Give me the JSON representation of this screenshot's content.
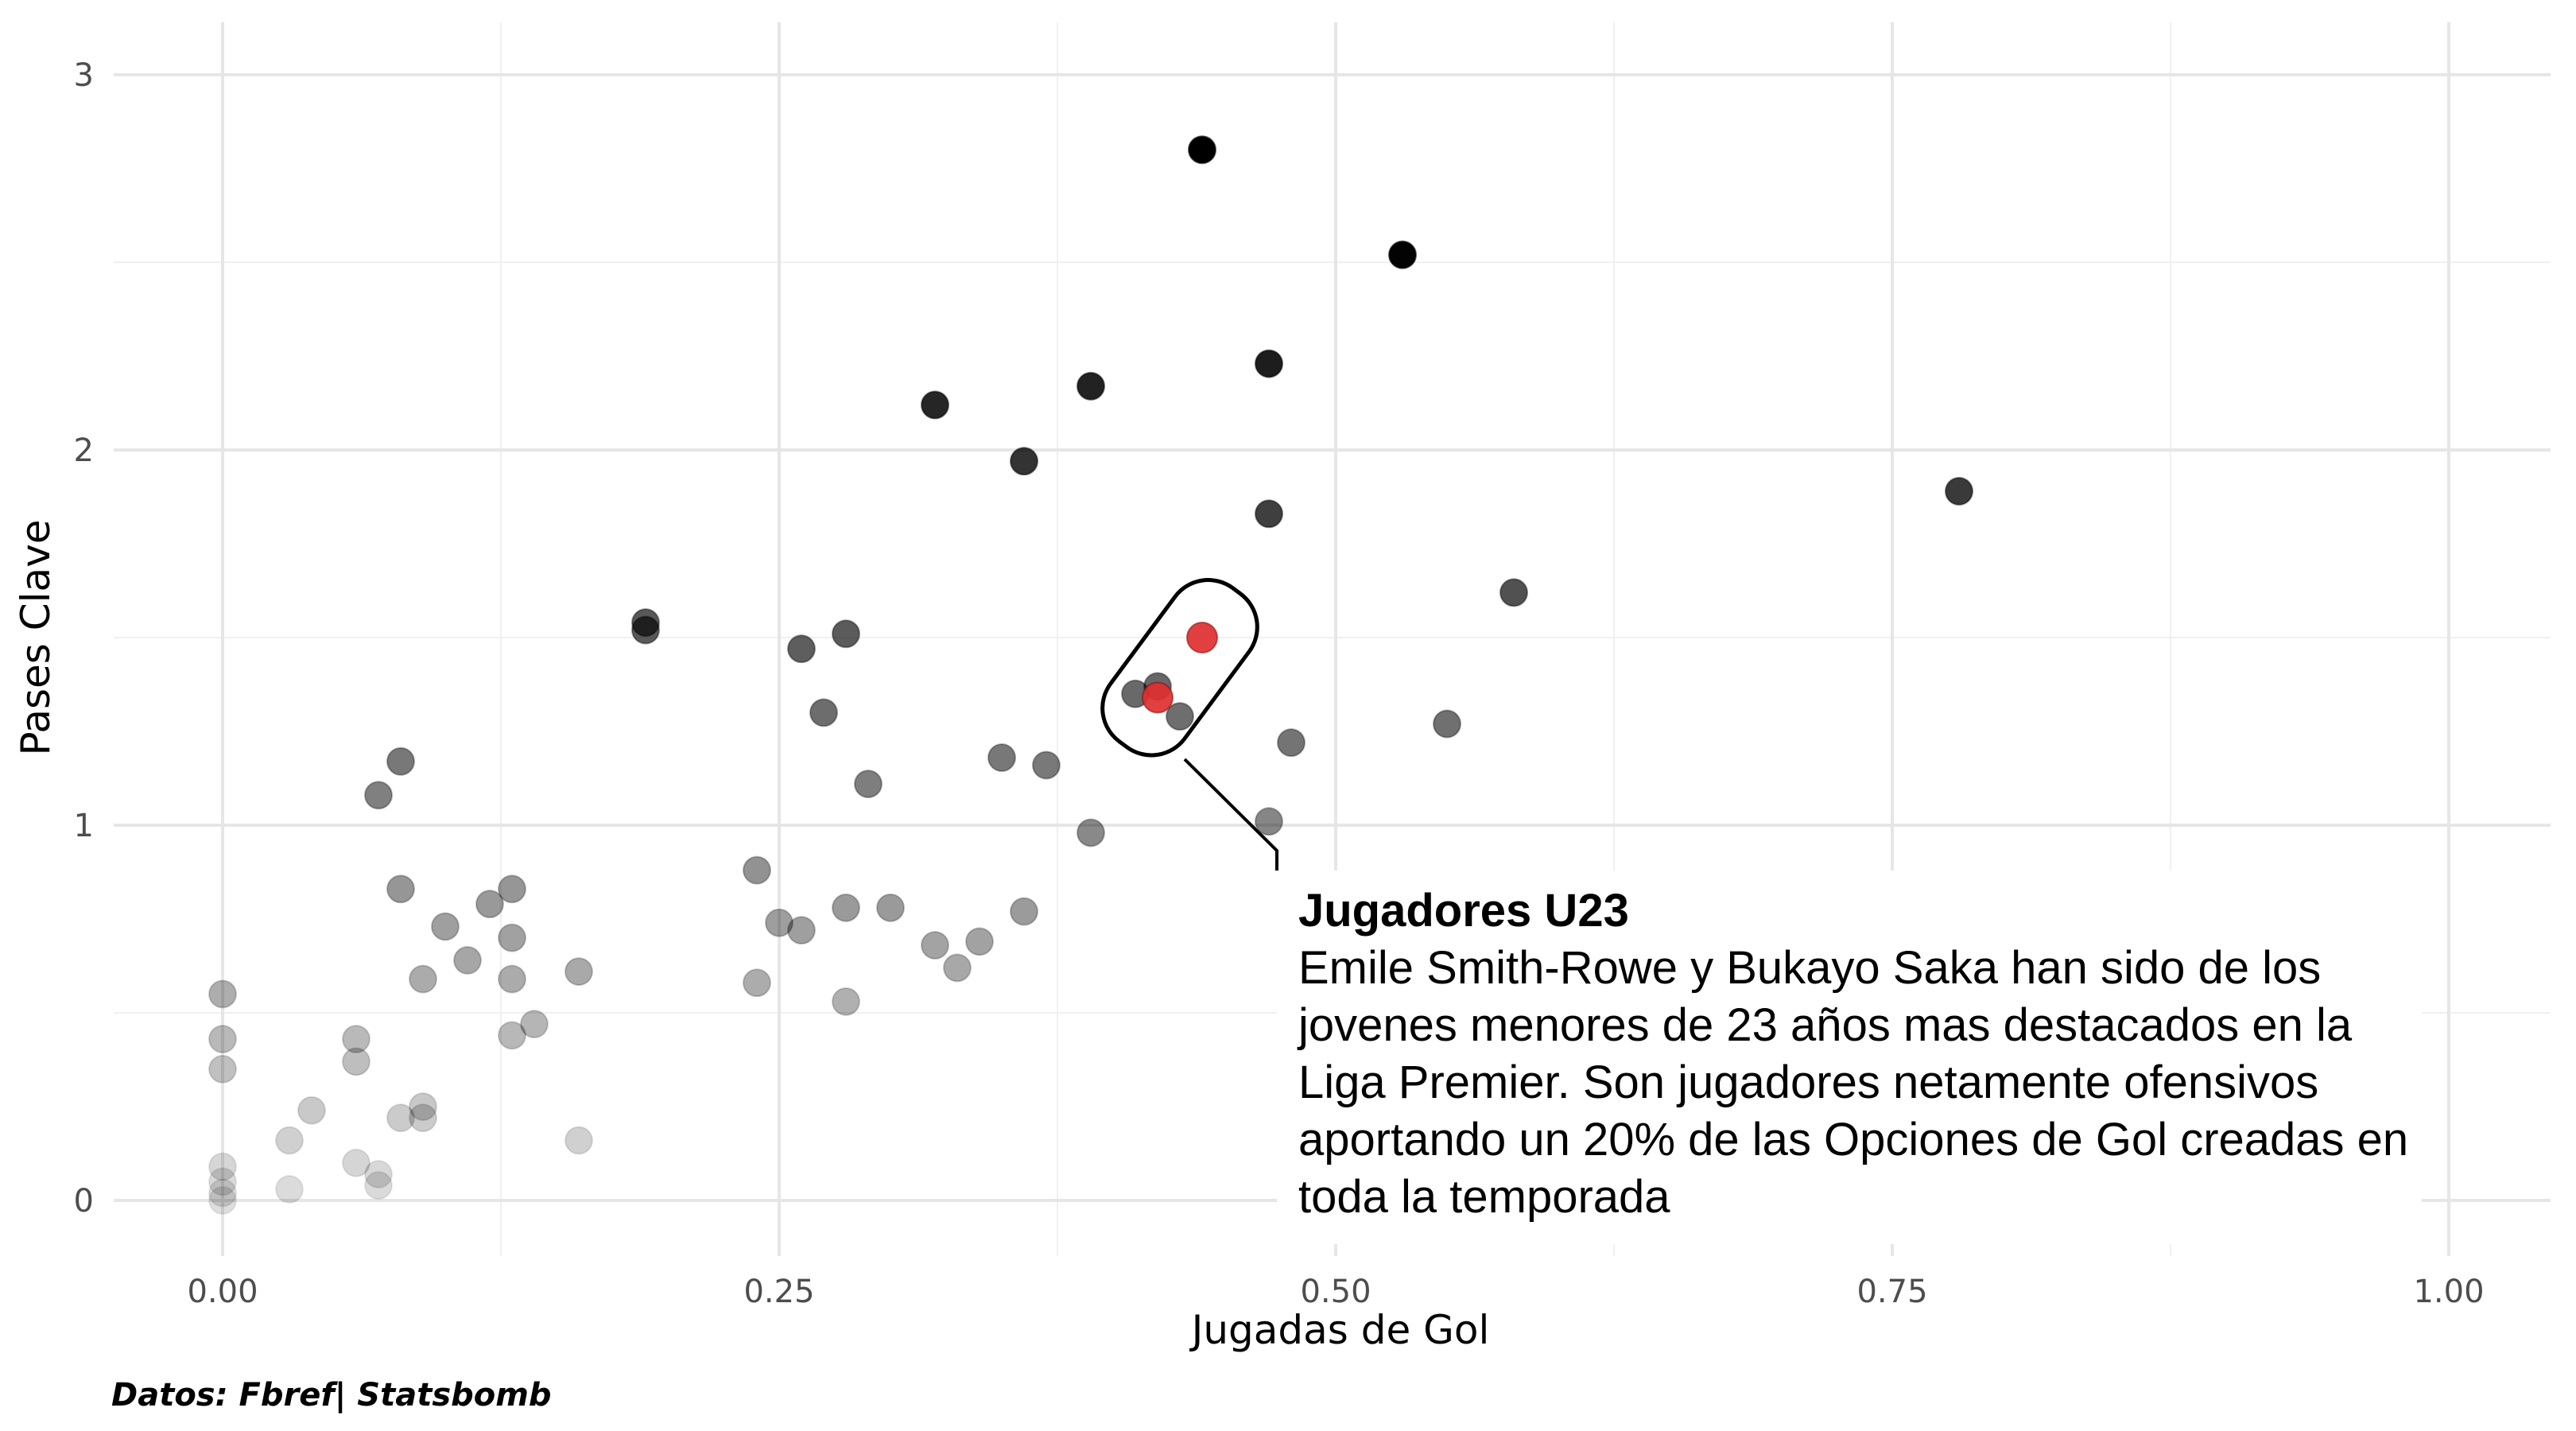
{
  "chart_data": {
    "type": "scatter",
    "xlabel": "Jugadas de Gol",
    "ylabel": "Pases Clave",
    "xlim": [
      -0.05,
      1.05
    ],
    "ylim": [
      -0.15,
      3.1
    ],
    "x_ticks": [
      "0.00",
      "0.25",
      "0.50",
      "0.75",
      "1.00"
    ],
    "x_tick_values": [
      0,
      0.25,
      0.5,
      0.75,
      1.0
    ],
    "y_ticks": [
      "0",
      "1",
      "2",
      "3"
    ],
    "y_tick_values": [
      0,
      1,
      2,
      3
    ],
    "grid": true,
    "point_color": "#000000",
    "highlight_color": "#e03030",
    "points": [
      {
        "x": 0.44,
        "y": 2.8
      },
      {
        "x": 0.53,
        "y": 2.52
      },
      {
        "x": 0.47,
        "y": 2.23
      },
      {
        "x": 0.39,
        "y": 2.17
      },
      {
        "x": 0.32,
        "y": 2.12
      },
      {
        "x": 0.36,
        "y": 1.97
      },
      {
        "x": 0.78,
        "y": 1.89
      },
      {
        "x": 0.47,
        "y": 1.83
      },
      {
        "x": 0.58,
        "y": 1.62
      },
      {
        "x": 0.19,
        "y": 1.54
      },
      {
        "x": 0.19,
        "y": 1.52
      },
      {
        "x": 0.28,
        "y": 1.51
      },
      {
        "x": 0.26,
        "y": 1.47
      },
      {
        "x": 0.42,
        "y": 1.37
      },
      {
        "x": 0.41,
        "y": 1.35
      },
      {
        "x": 0.27,
        "y": 1.3
      },
      {
        "x": 0.43,
        "y": 1.29
      },
      {
        "x": 0.55,
        "y": 1.27
      },
      {
        "x": 0.48,
        "y": 1.22
      },
      {
        "x": 0.35,
        "y": 1.18
      },
      {
        "x": 0.37,
        "y": 1.16
      },
      {
        "x": 0.08,
        "y": 1.17
      },
      {
        "x": 0.29,
        "y": 1.11
      },
      {
        "x": 0.07,
        "y": 1.08
      },
      {
        "x": 0.47,
        "y": 1.01
      },
      {
        "x": 0.39,
        "y": 0.98
      },
      {
        "x": 0.24,
        "y": 0.88
      },
      {
        "x": 0.08,
        "y": 0.83
      },
      {
        "x": 0.13,
        "y": 0.83
      },
      {
        "x": 0.12,
        "y": 0.79
      },
      {
        "x": 0.28,
        "y": 0.78
      },
      {
        "x": 0.3,
        "y": 0.78
      },
      {
        "x": 0.36,
        "y": 0.77
      },
      {
        "x": 0.25,
        "y": 0.74
      },
      {
        "x": 0.1,
        "y": 0.73
      },
      {
        "x": 0.26,
        "y": 0.72
      },
      {
        "x": 0.13,
        "y": 0.7
      },
      {
        "x": 0.32,
        "y": 0.68
      },
      {
        "x": 0.34,
        "y": 0.69
      },
      {
        "x": 0.11,
        "y": 0.64
      },
      {
        "x": 0.33,
        "y": 0.62
      },
      {
        "x": 0.16,
        "y": 0.61
      },
      {
        "x": 0.09,
        "y": 0.59
      },
      {
        "x": 0.13,
        "y": 0.59
      },
      {
        "x": 0.24,
        "y": 0.58
      },
      {
        "x": 0.0,
        "y": 0.55
      },
      {
        "x": 0.28,
        "y": 0.53
      },
      {
        "x": 0.14,
        "y": 0.47
      },
      {
        "x": 0.13,
        "y": 0.44
      },
      {
        "x": 0.0,
        "y": 0.43
      },
      {
        "x": 0.06,
        "y": 0.43
      },
      {
        "x": 0.06,
        "y": 0.37
      },
      {
        "x": 0.0,
        "y": 0.35
      },
      {
        "x": 0.09,
        "y": 0.25
      },
      {
        "x": 0.04,
        "y": 0.24
      },
      {
        "x": 0.08,
        "y": 0.22
      },
      {
        "x": 0.09,
        "y": 0.22
      },
      {
        "x": 0.03,
        "y": 0.16
      },
      {
        "x": 0.16,
        "y": 0.16
      },
      {
        "x": 0.06,
        "y": 0.1
      },
      {
        "x": 0.0,
        "y": 0.09
      },
      {
        "x": 0.07,
        "y": 0.07
      },
      {
        "x": 0.0,
        "y": 0.05
      },
      {
        "x": 0.07,
        "y": 0.04
      },
      {
        "x": 0.03,
        "y": 0.03
      },
      {
        "x": 0.0,
        "y": 0.02
      },
      {
        "x": 0.0,
        "y": 0.0
      }
    ],
    "highlighted": [
      {
        "x": 0.44,
        "y": 1.5
      },
      {
        "x": 0.42,
        "y": 1.34
      }
    ],
    "annotation": {
      "title": "Jugadores U23",
      "body": "Emile Smith-Rowe y Bukayo Saka han sido de los jovenes menores de 23 años mas destacados en la Liga Premier. Son jugadores netamente ofensivos aportando un 20% de las Opciones de Gol creadas en toda la temporada"
    },
    "caption": "Datos: Fbref|  Statsbomb"
  }
}
